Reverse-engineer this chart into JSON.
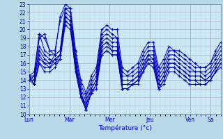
{
  "xlabel": "Température (°c)",
  "background_color": "#b8d8e8",
  "plot_bg_color": "#cce8f4",
  "line_color": "#0000bb",
  "grid_major_color": "#aabbcc",
  "grid_minor_color": "#bbccdd",
  "ylim": [
    10,
    23
  ],
  "yticks": [
    10,
    11,
    12,
    13,
    14,
    15,
    16,
    17,
    18,
    19,
    20,
    21,
    22,
    23
  ],
  "day_labels": [
    "Lun",
    "Mar",
    "Mer",
    "Jeu",
    "Ven",
    "Sa"
  ],
  "day_positions": [
    0,
    8,
    16,
    24,
    32,
    36
  ],
  "xlim": [
    0,
    38
  ],
  "series": [
    [
      14.5,
      15.0,
      19.5,
      19.0,
      17.5,
      17.0,
      21.5,
      23.0,
      22.5,
      17.5,
      14.0,
      12.5,
      14.5,
      15.5,
      20.0,
      20.5,
      20.0,
      20.0,
      15.5,
      15.0,
      15.5,
      16.0,
      17.5,
      18.5,
      18.5,
      15.5,
      16.5,
      18.0,
      17.5,
      17.5,
      17.0,
      16.5,
      16.0,
      15.5,
      15.5,
      16.0,
      17.5,
      18.5
    ],
    [
      14.5,
      14.5,
      19.0,
      19.5,
      17.5,
      17.5,
      21.0,
      22.5,
      22.0,
      17.0,
      13.5,
      12.0,
      14.0,
      15.0,
      19.5,
      20.0,
      19.5,
      19.0,
      15.0,
      14.5,
      15.0,
      15.5,
      17.0,
      18.0,
      18.0,
      15.0,
      16.0,
      17.5,
      17.5,
      17.0,
      16.5,
      16.0,
      15.5,
      15.5,
      15.5,
      16.0,
      17.0,
      18.0
    ],
    [
      14.5,
      14.5,
      19.5,
      17.5,
      17.0,
      17.0,
      17.5,
      22.5,
      22.5,
      16.5,
      13.0,
      11.5,
      13.5,
      14.5,
      19.0,
      19.5,
      19.0,
      19.0,
      14.5,
      14.5,
      14.5,
      15.0,
      16.5,
      17.5,
      17.5,
      14.5,
      15.5,
      17.0,
      17.0,
      16.5,
      16.0,
      15.5,
      15.0,
      15.0,
      15.0,
      15.5,
      16.5,
      17.5
    ],
    [
      14.0,
      14.0,
      18.0,
      17.0,
      16.5,
      16.0,
      17.0,
      22.0,
      21.5,
      16.0,
      12.5,
      11.0,
      13.0,
      14.0,
      18.5,
      19.0,
      18.5,
      18.5,
      14.0,
      14.0,
      14.0,
      14.5,
      16.0,
      17.0,
      17.0,
      14.0,
      15.0,
      16.5,
      16.5,
      16.0,
      15.5,
      15.0,
      15.0,
      15.0,
      14.5,
      15.0,
      16.0,
      17.0
    ],
    [
      14.0,
      14.5,
      17.5,
      16.5,
      16.0,
      17.0,
      17.5,
      21.5,
      21.0,
      16.0,
      12.5,
      10.5,
      12.5,
      13.5,
      18.0,
      18.5,
      18.0,
      18.0,
      13.5,
      13.5,
      14.0,
      14.5,
      15.5,
      17.0,
      16.5,
      13.5,
      14.5,
      16.0,
      16.0,
      15.5,
      15.0,
      14.5,
      14.5,
      14.5,
      14.0,
      14.5,
      15.5,
      16.5
    ],
    [
      14.5,
      14.0,
      17.0,
      16.0,
      16.0,
      16.5,
      17.0,
      21.5,
      21.0,
      15.5,
      12.5,
      11.0,
      13.0,
      14.0,
      18.0,
      18.5,
      17.5,
      17.5,
      13.5,
      13.5,
      13.5,
      14.0,
      15.5,
      16.5,
      16.5,
      13.5,
      14.5,
      16.0,
      16.0,
      15.5,
      15.0,
      14.5,
      14.5,
      14.5,
      14.0,
      14.5,
      15.5,
      16.5
    ],
    [
      14.5,
      13.5,
      16.5,
      16.0,
      15.5,
      16.5,
      17.0,
      21.0,
      20.5,
      15.5,
      12.5,
      10.5,
      12.5,
      13.5,
      17.5,
      18.0,
      17.5,
      17.5,
      13.0,
      13.0,
      13.5,
      14.0,
      15.0,
      16.5,
      16.0,
      13.0,
      14.0,
      15.5,
      15.5,
      15.0,
      14.5,
      14.0,
      14.0,
      14.0,
      14.0,
      14.0,
      15.0,
      16.0
    ],
    [
      14.0,
      13.5,
      16.0,
      15.5,
      15.5,
      16.0,
      16.5,
      21.0,
      20.5,
      15.0,
      12.0,
      10.5,
      12.5,
      13.5,
      17.0,
      17.5,
      17.0,
      17.0,
      13.0,
      13.0,
      13.5,
      14.0,
      15.0,
      16.0,
      16.0,
      13.0,
      14.0,
      15.5,
      15.5,
      15.0,
      14.5,
      14.0,
      14.0,
      13.5,
      13.5,
      14.0,
      15.0,
      16.0
    ],
    [
      14.5,
      13.5,
      16.0,
      15.0,
      15.0,
      15.5,
      16.5,
      20.5,
      20.0,
      15.0,
      12.0,
      10.5,
      12.5,
      13.0,
      17.0,
      17.5,
      17.0,
      17.0,
      13.0,
      13.0,
      13.5,
      13.5,
      15.0,
      16.0,
      15.5,
      13.0,
      13.5,
      15.0,
      15.0,
      14.5,
      14.0,
      13.5,
      13.5,
      13.5,
      13.5,
      14.0,
      15.0,
      15.5
    ]
  ]
}
